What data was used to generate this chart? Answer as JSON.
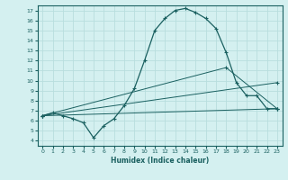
{
  "xlabel": "Humidex (Indice chaleur)",
  "bg_color": "#d4f0f0",
  "grid_color": "#b8dede",
  "line_color": "#1a6060",
  "xlim": [
    -0.5,
    23.5
  ],
  "ylim": [
    3.5,
    17.5
  ],
  "xticks": [
    0,
    1,
    2,
    3,
    4,
    5,
    6,
    7,
    8,
    9,
    10,
    11,
    12,
    13,
    14,
    15,
    16,
    17,
    18,
    19,
    20,
    21,
    22,
    23
  ],
  "yticks": [
    4,
    5,
    6,
    7,
    8,
    9,
    10,
    11,
    12,
    13,
    14,
    15,
    16,
    17
  ],
  "main_curve": {
    "x": [
      0,
      1,
      2,
      3,
      4,
      5,
      6,
      7,
      8,
      9,
      10,
      11,
      12,
      13,
      14,
      15,
      16,
      17,
      18,
      19,
      20,
      21,
      22,
      23
    ],
    "y": [
      6.5,
      6.8,
      6.5,
      6.2,
      5.8,
      4.3,
      5.5,
      6.2,
      7.5,
      9.2,
      12.0,
      15.0,
      16.2,
      17.0,
      17.2,
      16.8,
      16.2,
      15.2,
      12.8,
      9.8,
      8.5,
      8.5,
      7.2,
      7.2
    ]
  },
  "line1": {
    "x": [
      0,
      23
    ],
    "y": [
      6.5,
      7.2
    ]
  },
  "line2": {
    "x": [
      0,
      23
    ],
    "y": [
      6.5,
      9.8
    ]
  },
  "line3": {
    "x": [
      0,
      18,
      23
    ],
    "y": [
      6.5,
      11.3,
      7.2
    ]
  }
}
